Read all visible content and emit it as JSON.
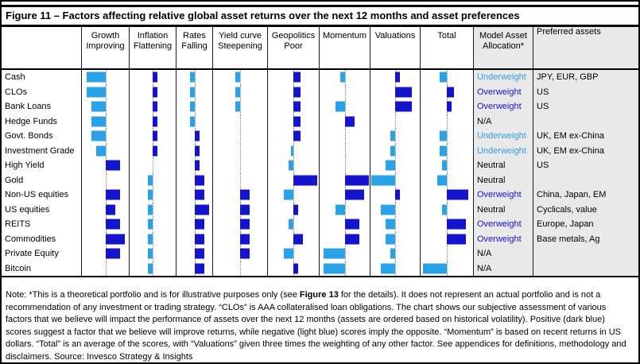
{
  "figure_title": "Figure 11 – Factors affecting relative global asset returns over the next 12 months and asset preferences",
  "colors": {
    "positive_dark_blue": "#1414cc",
    "negative_light_blue": "#29a2e8",
    "underweight_text": "#2e9fe6",
    "overweight_text": "#1414cc",
    "neutral_text": "#000000",
    "right_columns_bg": "#e9e9e9"
  },
  "header": {
    "asset_col": "",
    "model_asset_line1": "Model Asset",
    "model_asset_line2": "Allocation*",
    "preferred_assets": "Preferred assets"
  },
  "chart_data": {
    "type": "bar",
    "subtype": "diverging-horizontal-score-table",
    "legend_position": "none",
    "grid": "off",
    "score_range": [
      -5,
      5
    ],
    "factor_columns": [
      {
        "line1": "Growth",
        "line2": "Improving"
      },
      {
        "line1": "Inflation",
        "line2": "Flattening"
      },
      {
        "line1": "Rates",
        "line2": "Falling"
      },
      {
        "line1": "Yield curve",
        "line2": "Steepening"
      },
      {
        "line1": "Geopolitics",
        "line2": "Poor"
      },
      {
        "line1": "Momentum",
        "line2": ""
      },
      {
        "line1": "Valuations",
        "line2": ""
      },
      {
        "line1": "Total",
        "line2": ""
      }
    ],
    "rows": [
      {
        "asset": "Cash",
        "scores": [
          -4,
          1,
          -1,
          -1,
          1.5,
          -1,
          1,
          -1.5
        ],
        "allocation": "Underweight",
        "allocation_style": "underweight",
        "preferred": "JPY, EUR, GBP"
      },
      {
        "asset": "CLOs",
        "scores": [
          -4,
          1,
          -1,
          -1,
          1.5,
          0,
          3.5,
          1.5
        ],
        "allocation": "Overweight",
        "allocation_style": "overweight",
        "preferred": "US"
      },
      {
        "asset": "Bank Loans",
        "scores": [
          -3,
          1,
          -1,
          -1,
          1.5,
          -2,
          3.5,
          1
        ],
        "allocation": "Overweight",
        "allocation_style": "overweight",
        "preferred": "US"
      },
      {
        "asset": "Hedge Funds",
        "scores": [
          -3,
          1,
          -1,
          0,
          1.5,
          2,
          0,
          0
        ],
        "allocation": "N/A",
        "allocation_style": "neutral",
        "preferred": ""
      },
      {
        "asset": "Govt. Bonds",
        "scores": [
          -3,
          1,
          1,
          0,
          1.5,
          0,
          -1,
          -1.5
        ],
        "allocation": "Underweight",
        "allocation_style": "underweight",
        "preferred": "UK, EM ex-China"
      },
      {
        "asset": "Investment Grade",
        "scores": [
          -2,
          1,
          1,
          0,
          -0.5,
          0,
          -1,
          -1.5
        ],
        "allocation": "Underweight",
        "allocation_style": "underweight",
        "preferred": "UK, EM ex-China"
      },
      {
        "asset": "High Yield",
        "scores": [
          3,
          0,
          1,
          0,
          -1,
          0,
          -2,
          -1
        ],
        "allocation": "Neutral",
        "allocation_style": "neutral",
        "preferred": "US"
      },
      {
        "asset": "Gold",
        "scores": [
          0,
          -1,
          2,
          0,
          5,
          5,
          -5,
          -2
        ],
        "allocation": "Neutral",
        "allocation_style": "neutral",
        "preferred": ""
      },
      {
        "asset": "Non-US equities",
        "scores": [
          3,
          -1,
          2,
          2,
          -2,
          4,
          1,
          4.5
        ],
        "allocation": "Overweight",
        "allocation_style": "overweight",
        "preferred": "China, Japan, EM"
      },
      {
        "asset": "US equities",
        "scores": [
          2,
          -1,
          3,
          2,
          1,
          -2,
          -3,
          -1
        ],
        "allocation": "Neutral",
        "allocation_style": "neutral",
        "preferred": "Cyclicals, value"
      },
      {
        "asset": "REITS",
        "scores": [
          3,
          -1,
          2,
          2,
          -1,
          3,
          -2,
          4
        ],
        "allocation": "Overweight",
        "allocation_style": "overweight",
        "preferred": "Europe, Japan"
      },
      {
        "asset": "Commodities",
        "scores": [
          4,
          -1,
          2,
          2,
          2,
          3,
          -2,
          4
        ],
        "allocation": "Overweight",
        "allocation_style": "overweight",
        "preferred": "Base metals, Ag"
      },
      {
        "asset": "Private Equity",
        "scores": [
          3,
          -1,
          2,
          2,
          -2,
          -4.5,
          -1,
          0
        ],
        "allocation": "N/A",
        "allocation_style": "neutral",
        "preferred": ""
      },
      {
        "asset": "Bitcoin",
        "scores": [
          0,
          -1,
          2,
          0,
          1,
          -4.5,
          -3,
          -5
        ],
        "allocation": "N/A",
        "allocation_style": "neutral",
        "preferred": ""
      }
    ]
  },
  "note": {
    "part1": "Note: *This is a theoretical portfolio and is for illustrative purposes only (see ",
    "figure_ref": "Figure 13",
    "part2": " for the details). It does not represent an actual portfolio and is not a recommendation of any investment or trading strategy. “CLOs” is AAA collateralised loan obligations. The chart shows our subjective assessment of various factors that we believe will impact the performance of assets over the next 12 months (assets are ordered based on historical volatility). Positive (dark blue) scores suggest a factor that we believe will improve returns, while negative (light blue) scores imply the opposite. “Momentum” is based on recent returns in US dollars. “Total” is an average of the scores, with “Valuations” given three times the weighting of any other factor. See appendices for definitions, methodology and disclaimers. Source: Invesco Strategy & Insights"
  }
}
